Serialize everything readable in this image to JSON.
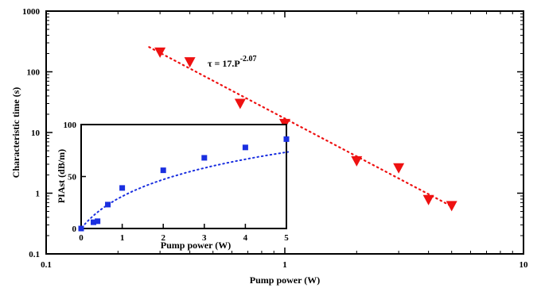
{
  "chart_data": [
    {
      "type": "scatter",
      "xlabel": "Pump power (W)",
      "ylabel": "Characteristic time (s)",
      "xscale": "log",
      "yscale": "log",
      "xlim": [
        0.1,
        10
      ],
      "ylim": [
        0.1,
        1000
      ],
      "x_ticks": [
        "0.1",
        "1",
        "10"
      ],
      "y_ticks": [
        "0.1",
        "1",
        "10",
        "100",
        "1000"
      ],
      "grid": false,
      "annotation": {
        "prefix": "τ = 17.P",
        "exponent": "-2.07"
      },
      "series": [
        {
          "marker": "triangle-down",
          "color": "#ee1111",
          "x": [
            0.3,
            0.4,
            0.65,
            1.0,
            2.0,
            3.0,
            4.0,
            5.0
          ],
          "y": [
            210,
            145,
            30,
            14,
            3.4,
            2.6,
            0.78,
            0.62
          ]
        }
      ],
      "fit": {
        "style": "dotted",
        "color": "#ee1111",
        "x_range": [
          0.27,
          5.0
        ],
        "coef": 17,
        "exponent": -2.07
      }
    },
    {
      "type": "scatter",
      "xlabel": "Pump power (W)",
      "ylabel": "PIAst (dB/m)",
      "xlim": [
        0,
        5
      ],
      "ylim": [
        0,
        100
      ],
      "x_ticks": [
        "0",
        "1",
        "2",
        "3",
        "4",
        "5"
      ],
      "y_ticks": [
        "0",
        "50",
        "100"
      ],
      "grid": false,
      "series": [
        {
          "marker": "square",
          "color": "#1a2fe0",
          "x": [
            0,
            0.3,
            0.4,
            0.65,
            1.0,
            2.0,
            3.0,
            4.0,
            5.0
          ],
          "y": [
            0,
            6,
            7,
            23,
            39,
            56,
            68,
            78,
            86
          ]
        }
      ],
      "fit": {
        "style": "dotted",
        "color": "#1a2fe0"
      }
    }
  ]
}
